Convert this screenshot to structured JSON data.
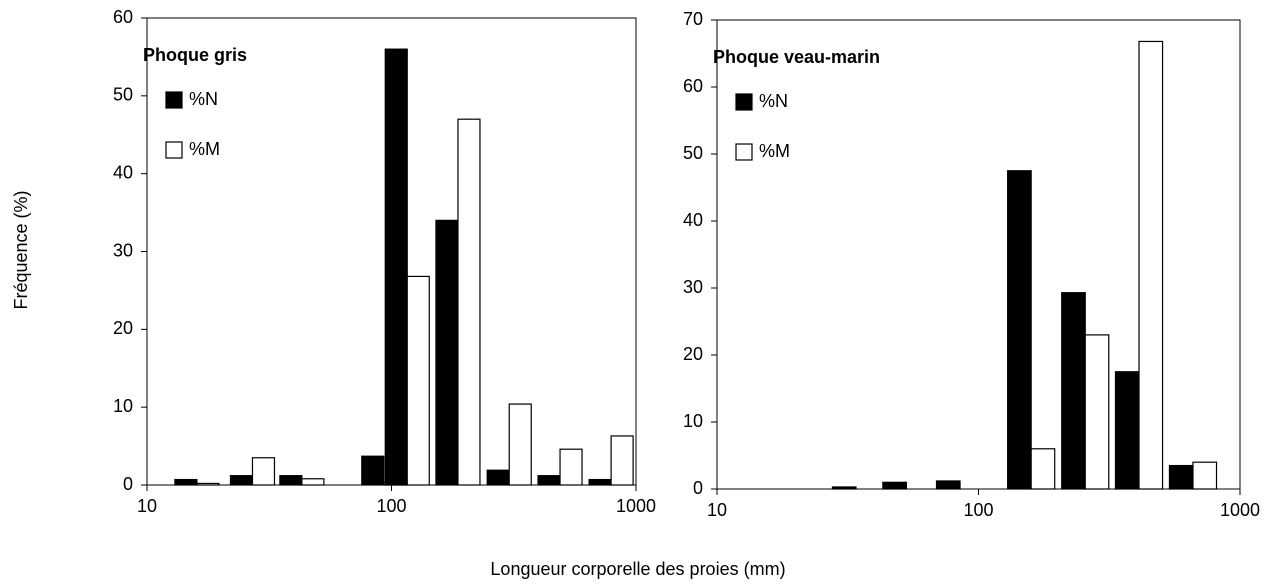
{
  "ylabel": "Fréquence (%)",
  "xlabel": "Longueur corporelle des proies (mm)",
  "chart_data": [
    {
      "type": "bar",
      "title": "Phoque gris",
      "xscale": "log",
      "legend": "upper left",
      "x": [
        16,
        27,
        43,
        93,
        116,
        187,
        303,
        489,
        791
      ],
      "series": [
        {
          "name": "%N",
          "color": "#000000",
          "values": [
            0.7,
            1.2,
            1.2,
            3.7,
            56,
            34,
            1.9,
            1.2,
            0.7
          ]
        },
        {
          "name": "%M",
          "color": "#ffffff",
          "values": [
            0.2,
            3.5,
            0.8,
            0.3,
            26.8,
            47,
            10.4,
            4.6,
            6.3
          ]
        }
      ],
      "xlim": [
        10,
        1000
      ],
      "xticks": [
        10,
        100,
        1000
      ],
      "ylim": [
        0,
        60
      ],
      "yticks": [
        0,
        10,
        20,
        30,
        40,
        50,
        60
      ]
    },
    {
      "type": "bar",
      "title": "Phoque veau-marin",
      "xscale": "log",
      "legend": "upper left",
      "x": [
        34,
        53,
        85,
        159,
        256,
        411,
        661
      ],
      "series": [
        {
          "name": "%N",
          "color": "#000000",
          "values": [
            0.3,
            1.0,
            1.2,
            47.5,
            29.3,
            17.5,
            3.5
          ]
        },
        {
          "name": "%M",
          "color": "#ffffff",
          "values": [
            0,
            0,
            0,
            6,
            23,
            66.8,
            4
          ]
        }
      ],
      "xlim": [
        10,
        1000
      ],
      "xticks": [
        10,
        100,
        1000
      ],
      "ylim": [
        0,
        70
      ],
      "yticks": [
        0,
        10,
        20,
        30,
        40,
        50,
        60,
        70
      ]
    }
  ]
}
